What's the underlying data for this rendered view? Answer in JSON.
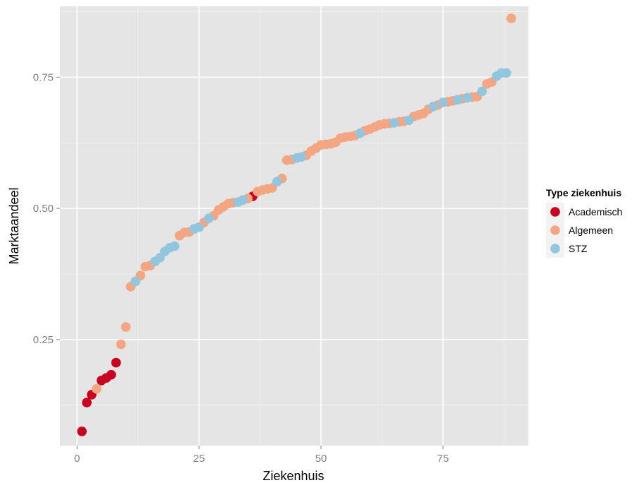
{
  "chart_data": {
    "type": "scatter",
    "xlabel": "Ziekenhuis",
    "ylabel": "Marktaandeel",
    "xlim": [
      -3.5,
      92.5
    ],
    "ylim": [
      0.048,
      0.885
    ],
    "x_ticks": [
      0,
      25,
      50,
      75
    ],
    "x_tick_labels": [
      "0",
      "25",
      "50",
      "75"
    ],
    "y_ticks": [
      0.25,
      0.5,
      0.75
    ],
    "y_tick_labels": [
      "0.25",
      "0.50",
      "0.75"
    ],
    "grid": true,
    "legend": {
      "title": "Type ziekenhuis",
      "placement": "right"
    },
    "series": [
      {
        "name": "Academisch",
        "color": "#ca0020",
        "points": [
          [
            1,
            0.075
          ],
          [
            2,
            0.13
          ],
          [
            3,
            0.145
          ],
          [
            5,
            0.172
          ],
          [
            6,
            0.177
          ],
          [
            7,
            0.183
          ],
          [
            8,
            0.206
          ],
          [
            36,
            0.523
          ]
        ]
      },
      {
        "name": "Algemeen",
        "color": "#f4a582",
        "points": [
          [
            4,
            0.156
          ],
          [
            9,
            0.241
          ],
          [
            10,
            0.274
          ],
          [
            11,
            0.351
          ],
          [
            13,
            0.372
          ],
          [
            14,
            0.389
          ],
          [
            15,
            0.391
          ],
          [
            21,
            0.448
          ],
          [
            22,
            0.454
          ],
          [
            23,
            0.455
          ],
          [
            26,
            0.473
          ],
          [
            28,
            0.486
          ],
          [
            29,
            0.497
          ],
          [
            30,
            0.503
          ],
          [
            31,
            0.509
          ],
          [
            32,
            0.511
          ],
          [
            35,
            0.519
          ],
          [
            37,
            0.532
          ],
          [
            38,
            0.535
          ],
          [
            39,
            0.537
          ],
          [
            40,
            0.539
          ],
          [
            42,
            0.557
          ],
          [
            43,
            0.592
          ],
          [
            44,
            0.593
          ],
          [
            47,
            0.601
          ],
          [
            48,
            0.609
          ],
          [
            49,
            0.615
          ],
          [
            50,
            0.621
          ],
          [
            51,
            0.622
          ],
          [
            52,
            0.623
          ],
          [
            53,
            0.626
          ],
          [
            54,
            0.634
          ],
          [
            55,
            0.636
          ],
          [
            56,
            0.637
          ],
          [
            57,
            0.639
          ],
          [
            59,
            0.648
          ],
          [
            60,
            0.651
          ],
          [
            61,
            0.655
          ],
          [
            62,
            0.659
          ],
          [
            63,
            0.661
          ],
          [
            64,
            0.662
          ],
          [
            66,
            0.665
          ],
          [
            67,
            0.666
          ],
          [
            69,
            0.675
          ],
          [
            70,
            0.678
          ],
          [
            71,
            0.681
          ],
          [
            72,
            0.689
          ],
          [
            74,
            0.697
          ],
          [
            76,
            0.703
          ],
          [
            77,
            0.705
          ],
          [
            79,
            0.709
          ],
          [
            81,
            0.712
          ],
          [
            82,
            0.713
          ],
          [
            84,
            0.737
          ],
          [
            85,
            0.741
          ],
          [
            89,
            0.862
          ]
        ]
      },
      {
        "name": "STZ",
        "color": "#92c5de",
        "points": [
          [
            12,
            0.361
          ],
          [
            16,
            0.399
          ],
          [
            17,
            0.406
          ],
          [
            18,
            0.418
          ],
          [
            19,
            0.425
          ],
          [
            20,
            0.428
          ],
          [
            24,
            0.461
          ],
          [
            25,
            0.464
          ],
          [
            27,
            0.481
          ],
          [
            33,
            0.512
          ],
          [
            34,
            0.516
          ],
          [
            41,
            0.551
          ],
          [
            45,
            0.596
          ],
          [
            46,
            0.598
          ],
          [
            58,
            0.643
          ],
          [
            65,
            0.663
          ],
          [
            68,
            0.668
          ],
          [
            73,
            0.694
          ],
          [
            75,
            0.702
          ],
          [
            78,
            0.707
          ],
          [
            80,
            0.711
          ],
          [
            83,
            0.723
          ],
          [
            86,
            0.752
          ],
          [
            87,
            0.758
          ],
          [
            88,
            0.758
          ]
        ]
      }
    ]
  }
}
